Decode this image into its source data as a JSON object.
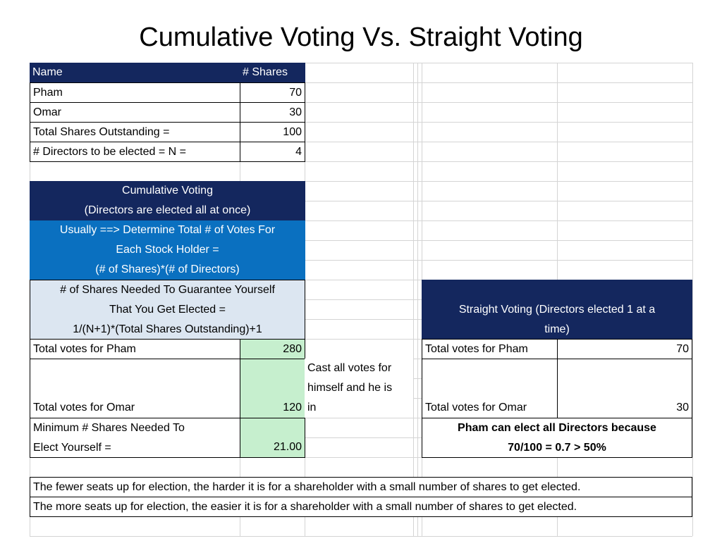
{
  "title": "Cumulative Voting Vs. Straight Voting",
  "shares_table": {
    "header": {
      "name": "Name",
      "shares": "# Shares"
    },
    "rows": [
      {
        "label": "Pham",
        "value": "70"
      },
      {
        "label": "Omar",
        "value": "30"
      },
      {
        "label": "Total Shares Outstanding =",
        "value": "100"
      },
      {
        "label": "# Directors to be elected = N =",
        "value": "4"
      }
    ]
  },
  "cumulative": {
    "heading": [
      "Cumulative Voting",
      "(Directors are elected all at once)"
    ],
    "usually": [
      "Usually ==> Determine Total # of Votes For",
      "Each Stock Holder =",
      "(# of Shares)*(# of Directors)"
    ],
    "needed": [
      "# of Shares Needed To Guarantee Yourself",
      "That You Get Elected =",
      "1/(N+1)*(Total Shares Outstanding)+1"
    ],
    "pham": {
      "label": "Total votes for Pham",
      "value": "280"
    },
    "omar": {
      "label": "Total votes for Omar",
      "value": "120"
    },
    "minimum": {
      "label": [
        "Minimum # Shares Needed To",
        "Elect Yourself ="
      ],
      "value": "21.00"
    },
    "note": [
      "Cast all votes for",
      "himself and he is",
      "in"
    ]
  },
  "straight": {
    "heading": [
      "Straight Voting (Directors elected 1 at a",
      "time)"
    ],
    "pham": {
      "label": "Total votes for Pham",
      "value": "70"
    },
    "omar": {
      "label": "Total votes for Omar",
      "value": "30"
    },
    "conclusion": [
      "Pham can elect all Directors because",
      "70/100 = 0.7 > 50%"
    ]
  },
  "notes": [
    "The fewer seats up for election, the harder it is for a shareholder with a small number of shares to get elected.",
    "The more seats up for election, the easier it is for a shareholder with a small number of shares to get elected."
  ]
}
